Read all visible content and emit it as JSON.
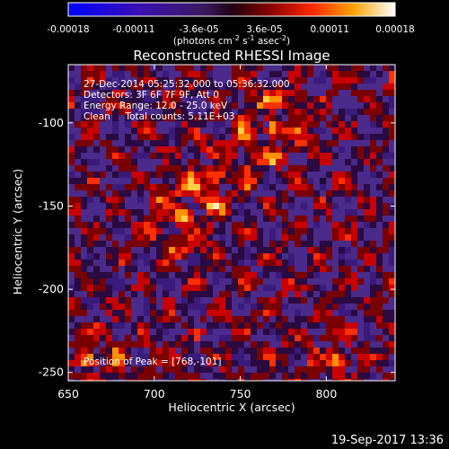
{
  "chart_data": {
    "type": "heatmap",
    "title": "Reconstructed RHESSI Image",
    "xlabel": "Heliocentric X (arcsec)",
    "ylabel": "Heliocentric Y (arcsec)",
    "xlim": [
      650,
      840
    ],
    "ylim": [
      -255,
      -65
    ],
    "x_ticks": [
      "650",
      "700",
      "750",
      "800"
    ],
    "x_tick_values": [
      650,
      700,
      750,
      800
    ],
    "y_ticks": [
      "-100",
      "-150",
      "-200",
      "-250"
    ],
    "y_tick_values": [
      -100,
      -150,
      -200,
      -250
    ],
    "colorbar": {
      "tick_labels": [
        "-0.00018",
        "-0.00011",
        "-3.6e-05",
        "3.6e-05",
        "0.00011",
        "0.00018"
      ],
      "range": [
        -0.00018,
        0.00018
      ],
      "unit_label": "(photons cm",
      "unit_exp1": "-2",
      "unit_mid1": " s",
      "unit_exp2": "-1",
      "unit_mid2": " asec",
      "unit_exp3": "-2",
      "unit_end": ")"
    },
    "info_lines": [
      "27-Dec-2014 05:25:32.000 to 05:36:32.000",
      "Detectors: 3F 6F 7F 9F, Att 0",
      "Energy Range: 12.0 - 25.0 keV",
      "Clean     Total counts: 5.11E+03"
    ],
    "peak_label": "Position of Peak = [768,-101]",
    "peak_position": [
      768,
      -101
    ],
    "grid": false
  },
  "footer": {
    "timestamp": "19-Sep-2017 13:36"
  }
}
